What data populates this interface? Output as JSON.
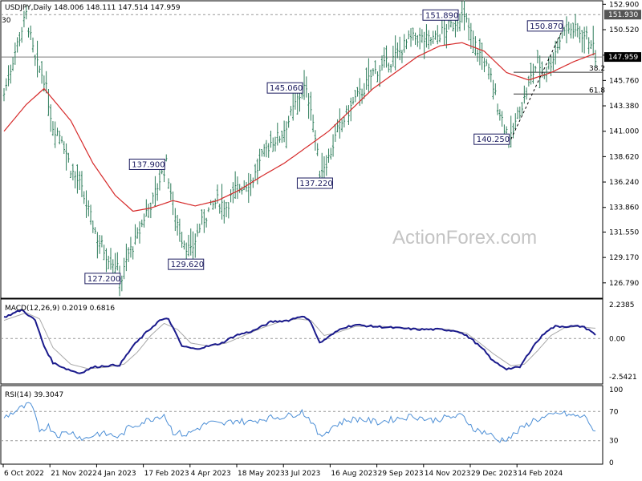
{
  "chart_data": {
    "type": "line",
    "main": {
      "header": "USDJPY,Daily  148.006 148.111 147.514 147.959",
      "corner_label": "30",
      "watermark": "ActionForex.com",
      "ylim": [
        125.5,
        153.0
      ],
      "y_ticks": [
        152.9,
        150.52,
        148.13,
        145.76,
        143.38,
        141.0,
        138.62,
        136.24,
        133.86,
        131.55,
        129.17,
        126.79
      ],
      "y_tick_labels": [
        "152.900",
        "150.520",
        "148.130",
        "145.760",
        "143.380",
        "141.000",
        "138.620",
        "136.240",
        "133.860",
        "131.550",
        "129.170",
        "126.790"
      ],
      "current_price_label": "147.959",
      "current_price": 147.959,
      "high_line_label": "151.930",
      "high_line": 151.93,
      "fib_levels": [
        {
          "label": "38.2",
          "value": 146.53
        },
        {
          "label": "61.8",
          "value": 144.49
        }
      ],
      "price_anchors": [
        [
          0,
          144.5
        ],
        [
          5,
          148.5
        ],
        [
          10,
          151.9
        ],
        [
          14,
          147.5
        ],
        [
          18,
          146.0
        ],
        [
          22,
          141.5
        ],
        [
          26,
          140.5
        ],
        [
          30,
          137.5
        ],
        [
          34,
          136.0
        ],
        [
          38,
          133.5
        ],
        [
          42,
          131.0
        ],
        [
          46,
          129.5
        ],
        [
          50,
          128.5
        ],
        [
          53,
          127.2
        ],
        [
          56,
          129.5
        ],
        [
          60,
          131.0
        ],
        [
          64,
          133.5
        ],
        [
          67,
          134.5
        ],
        [
          70,
          136.5
        ],
        [
          73,
          137.9
        ],
        [
          76,
          134.0
        ],
        [
          80,
          131.0
        ],
        [
          84,
          129.62
        ],
        [
          88,
          132.0
        ],
        [
          92,
          133.5
        ],
        [
          96,
          134.5
        ],
        [
          100,
          134.0
        ],
        [
          104,
          135.5
        ],
        [
          108,
          136.0
        ],
        [
          112,
          136.5
        ],
        [
          116,
          138.5
        ],
        [
          120,
          140.0
        ],
        [
          124,
          140.5
        ],
        [
          128,
          142.0
        ],
        [
          132,
          144.0
        ],
        [
          135,
          145.06
        ],
        [
          138,
          143.5
        ],
        [
          142,
          137.22
        ],
        [
          146,
          138.5
        ],
        [
          150,
          141.0
        ],
        [
          154,
          142.5
        ],
        [
          158,
          144.0
        ],
        [
          162,
          145.0
        ],
        [
          166,
          146.5
        ],
        [
          170,
          147.0
        ],
        [
          174,
          147.5
        ],
        [
          178,
          148.5
        ],
        [
          182,
          149.5
        ],
        [
          186,
          149.8
        ],
        [
          190,
          149.5
        ],
        [
          194,
          149.7
        ],
        [
          198,
          150.5
        ],
        [
          202,
          151.0
        ],
        [
          205,
          151.89
        ],
        [
          208,
          151.2
        ],
        [
          212,
          149.0
        ],
        [
          216,
          147.5
        ],
        [
          219,
          146.0
        ],
        [
          222,
          143.5
        ],
        [
          225,
          141.5
        ],
        [
          228,
          140.25
        ],
        [
          231,
          142.5
        ],
        [
          234,
          144.0
        ],
        [
          237,
          146.0
        ],
        [
          240,
          147.5
        ],
        [
          243,
          146.5
        ],
        [
          246,
          147.5
        ],
        [
          249,
          149.0
        ],
        [
          252,
          150.87
        ],
        [
          255,
          150.5
        ],
        [
          258,
          150.5
        ],
        [
          261,
          150.0
        ],
        [
          264,
          149.5
        ],
        [
          266,
          147.959
        ]
      ],
      "ma_anchors": [
        [
          0,
          141.0
        ],
        [
          10,
          143.5
        ],
        [
          18,
          145.0
        ],
        [
          30,
          142.0
        ],
        [
          40,
          138.0
        ],
        [
          50,
          135.0
        ],
        [
          58,
          133.5
        ],
        [
          66,
          133.8
        ],
        [
          76,
          134.5
        ],
        [
          86,
          134.0
        ],
        [
          96,
          134.5
        ],
        [
          106,
          135.5
        ],
        [
          116,
          136.8
        ],
        [
          126,
          138.0
        ],
        [
          136,
          139.5
        ],
        [
          146,
          141.0
        ],
        [
          156,
          143.0
        ],
        [
          166,
          145.0
        ],
        [
          176,
          146.5
        ],
        [
          186,
          148.0
        ],
        [
          196,
          149.0
        ],
        [
          206,
          149.3
        ],
        [
          216,
          148.5
        ],
        [
          226,
          146.5
        ],
        [
          236,
          145.8
        ],
        [
          246,
          146.5
        ],
        [
          256,
          147.5
        ],
        [
          266,
          148.3
        ]
      ],
      "annotations": [
        {
          "text": "151.890",
          "value": 151.89
        },
        {
          "text": "150.870",
          "value": 150.87
        },
        {
          "text": "145.060",
          "value": 145.06
        },
        {
          "text": "137.900",
          "value": 137.9
        },
        {
          "text": "137.220",
          "value": 137.22
        },
        {
          "text": "140.250",
          "value": 140.25
        },
        {
          "text": "129.620",
          "value": 129.62
        },
        {
          "text": "127.200",
          "value": 127.2
        }
      ]
    },
    "macd": {
      "header": "MACD(12,26,9) 0.2019 0.6816",
      "ylim": [
        -2.9,
        2.45
      ],
      "y_ticks": [
        2.2385,
        0.0,
        -2.5421
      ],
      "y_tick_labels": [
        "2.2385",
        "0.00",
        "-2.5421"
      ],
      "macd_anchors": [
        [
          0,
          1.4
        ],
        [
          8,
          1.9
        ],
        [
          14,
          1.2
        ],
        [
          18,
          -0.5
        ],
        [
          22,
          -1.6
        ],
        [
          28,
          -2.0
        ],
        [
          34,
          -2.3
        ],
        [
          40,
          -1.9
        ],
        [
          46,
          -1.8
        ],
        [
          52,
          -1.75
        ],
        [
          58,
          -0.5
        ],
        [
          64,
          0.4
        ],
        [
          70,
          1.2
        ],
        [
          74,
          1.3
        ],
        [
          80,
          -0.5
        ],
        [
          86,
          -0.7
        ],
        [
          92,
          -0.5
        ],
        [
          98,
          -0.3
        ],
        [
          104,
          0.2
        ],
        [
          112,
          0.5
        ],
        [
          120,
          1.1
        ],
        [
          128,
          1.2
        ],
        [
          134,
          1.5
        ],
        [
          138,
          1.1
        ],
        [
          142,
          -0.3
        ],
        [
          148,
          0.3
        ],
        [
          152,
          0.7
        ],
        [
          158,
          0.9
        ],
        [
          166,
          0.8
        ],
        [
          176,
          0.7
        ],
        [
          186,
          0.6
        ],
        [
          196,
          0.6
        ],
        [
          204,
          0.5
        ],
        [
          210,
          0.0
        ],
        [
          216,
          -0.8
        ],
        [
          220,
          -1.5
        ],
        [
          226,
          -2.0
        ],
        [
          232,
          -1.9
        ],
        [
          238,
          -0.5
        ],
        [
          244,
          0.5
        ],
        [
          248,
          0.8
        ],
        [
          254,
          0.8
        ],
        [
          260,
          0.8
        ],
        [
          264,
          0.5
        ],
        [
          266,
          0.2019
        ]
      ],
      "signal_anchors": [
        [
          0,
          1.2
        ],
        [
          10,
          1.7
        ],
        [
          16,
          1.3
        ],
        [
          22,
          -0.6
        ],
        [
          30,
          -1.7
        ],
        [
          38,
          -2.0
        ],
        [
          46,
          -1.9
        ],
        [
          54,
          -1.7
        ],
        [
          60,
          -0.9
        ],
        [
          66,
          0.2
        ],
        [
          72,
          1.0
        ],
        [
          78,
          0.6
        ],
        [
          84,
          -0.3
        ],
        [
          92,
          -0.5
        ],
        [
          100,
          -0.3
        ],
        [
          108,
          0.2
        ],
        [
          116,
          0.7
        ],
        [
          124,
          1.1
        ],
        [
          132,
          1.3
        ],
        [
          138,
          1.2
        ],
        [
          144,
          0.2
        ],
        [
          150,
          0.4
        ],
        [
          158,
          0.8
        ],
        [
          170,
          0.8
        ],
        [
          186,
          0.65
        ],
        [
          200,
          0.6
        ],
        [
          208,
          0.35
        ],
        [
          214,
          -0.3
        ],
        [
          220,
          -1.0
        ],
        [
          228,
          -1.8
        ],
        [
          234,
          -1.7
        ],
        [
          240,
          -0.8
        ],
        [
          246,
          0.2
        ],
        [
          252,
          0.7
        ],
        [
          258,
          0.8
        ],
        [
          264,
          0.7
        ],
        [
          266,
          0.6816
        ]
      ]
    },
    "rsi": {
      "header": "RSI(14) 39.3047",
      "ylim": [
        0,
        100
      ],
      "y_ticks": [
        100,
        70,
        30,
        0
      ],
      "y_tick_labels": [
        "100",
        "70",
        "30",
        "0"
      ],
      "rsi_anchors": [
        [
          0,
          62
        ],
        [
          8,
          75
        ],
        [
          12,
          80
        ],
        [
          16,
          45
        ],
        [
          20,
          50
        ],
        [
          24,
          38
        ],
        [
          30,
          42
        ],
        [
          36,
          32
        ],
        [
          42,
          40
        ],
        [
          48,
          38
        ],
        [
          52,
          35
        ],
        [
          56,
          48
        ],
        [
          62,
          55
        ],
        [
          68,
          62
        ],
        [
          72,
          66
        ],
        [
          76,
          42
        ],
        [
          82,
          38
        ],
        [
          86,
          45
        ],
        [
          92,
          55
        ],
        [
          98,
          52
        ],
        [
          104,
          58
        ],
        [
          110,
          55
        ],
        [
          116,
          60
        ],
        [
          122,
          62
        ],
        [
          128,
          64
        ],
        [
          134,
          70
        ],
        [
          138,
          58
        ],
        [
          142,
          35
        ],
        [
          148,
          50
        ],
        [
          154,
          58
        ],
        [
          160,
          60
        ],
        [
          168,
          55
        ],
        [
          176,
          60
        ],
        [
          184,
          64
        ],
        [
          192,
          58
        ],
        [
          200,
          62
        ],
        [
          206,
          64
        ],
        [
          212,
          45
        ],
        [
          218,
          40
        ],
        [
          222,
          30
        ],
        [
          228,
          35
        ],
        [
          232,
          45
        ],
        [
          238,
          58
        ],
        [
          244,
          62
        ],
        [
          250,
          68
        ],
        [
          256,
          64
        ],
        [
          262,
          62
        ],
        [
          266,
          39.3
        ]
      ]
    },
    "x_labels": [
      "6 Oct 2022",
      "21 Nov 2022",
      "4 Jan 2023",
      "17 Feb 2023",
      "4 Apr 2023",
      "18 May 2023",
      "3 Jul 2023",
      "16 Aug 2023",
      "29 Sep 2023",
      "14 Nov 2023",
      "29 Dec 2023",
      "14 Feb 2024"
    ],
    "x_label_bars": [
      0,
      32,
      62,
      92,
      123,
      154,
      185,
      216,
      247,
      278,
      308,
      339
    ],
    "bar_count": 267,
    "colors": {
      "bars": "#2e7d5b",
      "ma": "#d62a2a",
      "macd": "#1a1a8c",
      "signal": "#a8a8a8",
      "rsi": "#4d8fd6",
      "grid_dash": "#999999",
      "price_tag_bg": "#000000"
    }
  }
}
